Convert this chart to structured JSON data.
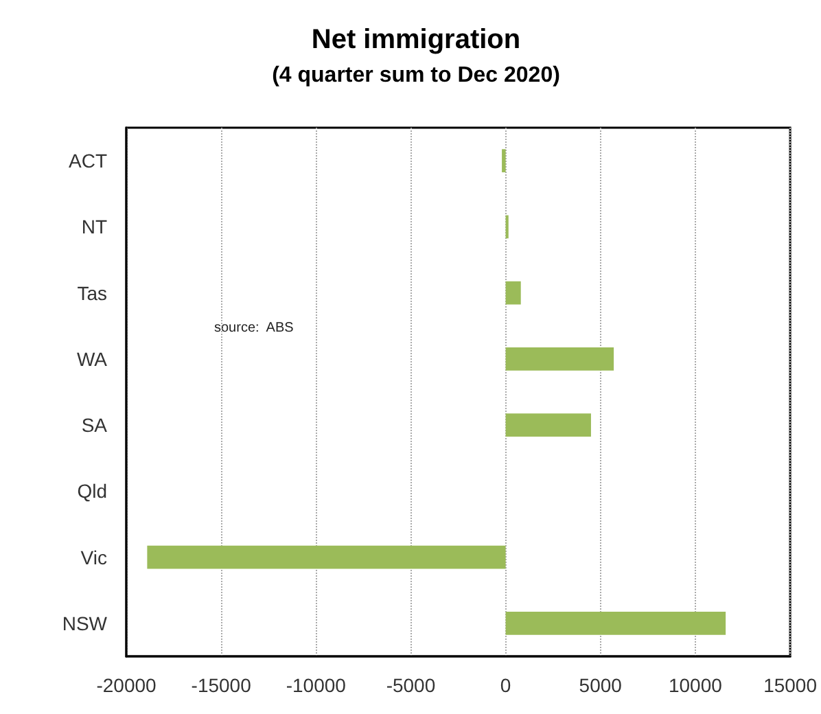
{
  "chart_data": {
    "type": "bar",
    "orientation": "horizontal",
    "title": "Net immigration",
    "subtitle": "(4 quarter sum to Dec 2020)",
    "categories": [
      "ACT",
      "NT",
      "Tas",
      "WA",
      "SA",
      "Qld",
      "Vic",
      "NSW"
    ],
    "values": [
      -200,
      150,
      800,
      5700,
      4500,
      0,
      -18900,
      11600
    ],
    "color": "#9bbb59",
    "xlim": [
      -20000,
      15000
    ],
    "xticks": [
      -20000,
      -15000,
      -10000,
      -5000,
      0,
      5000,
      10000,
      15000
    ],
    "grid": "x",
    "annotations": [
      "source:  ABS"
    ]
  }
}
